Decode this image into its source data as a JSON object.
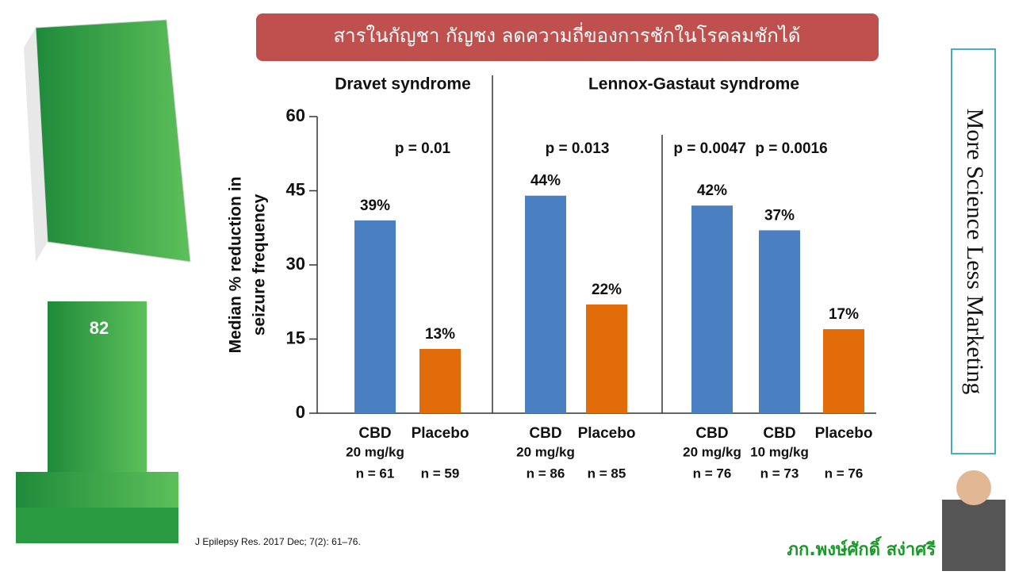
{
  "slide": {
    "title": "สารในกัญชา กัญชง ลดความถี่ของการชักในโรคลมชักได้",
    "side_text": "More Science Less Marketing",
    "citation": "J Epilepsy Res. 2017 Dec; 7(2): 61–76.",
    "author": "ภก.พงษ์ศักดิ์ สง่าศรี"
  },
  "chart_data": {
    "type": "bar",
    "y_label": [
      "Median % reduction in",
      "seizure frequency"
    ],
    "groups": [
      "Dravet syndrome",
      "Lennox-Gastaut  syndrome"
    ],
    "annotations": [
      "p = 0.01",
      "p = 0.013",
      "p = 0.0047",
      "p = 0.0016"
    ],
    "categories": [
      "CBD",
      "Placebo",
      "CBD",
      "Placebo",
      "CBD",
      "CBD",
      "Placebo"
    ],
    "doses": [
      "20 mg/kg",
      null,
      "20 mg/kg",
      null,
      "20 mg/kg",
      "10 mg/kg",
      null
    ],
    "n": [
      "n = 61",
      "n = 59",
      "n = 86",
      "n = 85",
      "n = 76",
      "n = 73",
      "n = 76"
    ],
    "values": [
      39,
      13,
      44,
      22,
      42,
      37,
      17
    ],
    "value_labels": [
      "39%",
      "13%",
      "44%",
      "22%",
      "42%",
      "37%",
      "17%"
    ],
    "colors": [
      "#4a7fc1",
      "#e36c0a",
      "#4a7fc1",
      "#e36c0a",
      "#4a7fc1",
      "#4a7fc1",
      "#e36c0a"
    ],
    "ylim": [
      0,
      60
    ],
    "yticks": [
      0,
      15,
      30,
      45,
      60
    ]
  }
}
